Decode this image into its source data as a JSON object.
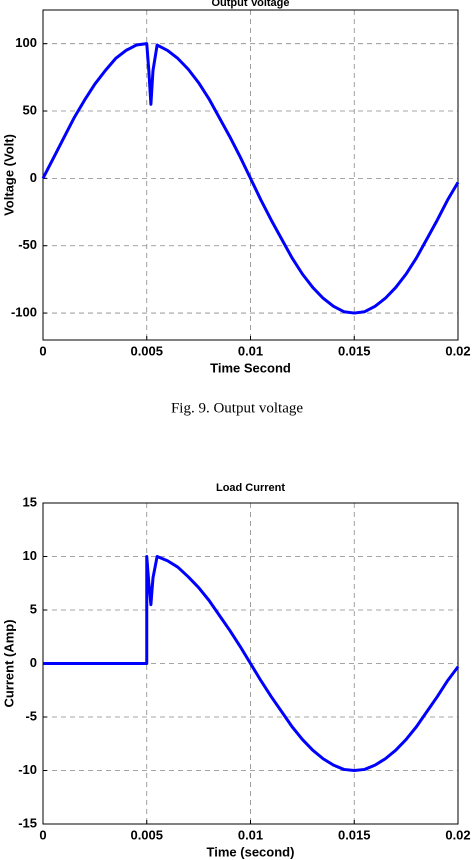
{
  "chart_data": [
    {
      "type": "line",
      "title": "Output Voltage",
      "xlabel": "Time Second",
      "ylabel": "Voltage (Volt)",
      "x": [
        0,
        0.0005,
        0.001,
        0.0015,
        0.002,
        0.0025,
        0.003,
        0.0035,
        0.004,
        0.0045,
        0.005,
        0.0051,
        0.0052,
        0.0053,
        0.0055,
        0.006,
        0.0065,
        0.007,
        0.0075,
        0.008,
        0.0085,
        0.009,
        0.0095,
        0.01,
        0.0105,
        0.011,
        0.0115,
        0.012,
        0.0125,
        0.013,
        0.0135,
        0.014,
        0.0145,
        0.015,
        0.0155,
        0.016,
        0.0165,
        0.017,
        0.0175,
        0.018,
        0.0185,
        0.019,
        0.0195,
        0.02
      ],
      "series": [
        {
          "name": "Output Voltage",
          "color": "#0000ff",
          "values": [
            0,
            15,
            30,
            45,
            58,
            70,
            80,
            89,
            95,
            99,
            100,
            80,
            55,
            80,
            99,
            95,
            89,
            81,
            71,
            59,
            45,
            31,
            16,
            0,
            -16,
            -31,
            -45,
            -59,
            -71,
            -81,
            -89,
            -95,
            -99,
            -100,
            -99,
            -95,
            -89,
            -81,
            -71,
            -59,
            -45,
            -31,
            -16,
            -3
          ]
        }
      ],
      "xlim": [
        0,
        0.02
      ],
      "xticks": [
        0,
        0.005,
        0.01,
        0.015,
        0.02
      ],
      "ylim": [
        -120,
        125
      ],
      "yticks": [
        -100,
        -50,
        0,
        50,
        100
      ],
      "grid": true
    },
    {
      "type": "line",
      "title": "Load Current",
      "xlabel": "Time (second)",
      "ylabel": "Current (Amp)",
      "x": [
        0,
        0.005,
        0.005,
        0.0051,
        0.0052,
        0.0053,
        0.0055,
        0.006,
        0.0065,
        0.007,
        0.0075,
        0.008,
        0.0085,
        0.009,
        0.0095,
        0.01,
        0.0105,
        0.011,
        0.0115,
        0.012,
        0.0125,
        0.013,
        0.0135,
        0.014,
        0.0145,
        0.015,
        0.0155,
        0.016,
        0.0165,
        0.017,
        0.0175,
        0.018,
        0.0185,
        0.019,
        0.0195,
        0.02
      ],
      "series": [
        {
          "name": "Load Current",
          "color": "#0000ff",
          "values": [
            0,
            0,
            10,
            7.5,
            5.5,
            8,
            10,
            9.6,
            9,
            8.1,
            7.1,
            5.9,
            4.5,
            3.1,
            1.6,
            0,
            -1.6,
            -3.1,
            -4.5,
            -5.9,
            -7.1,
            -8.1,
            -8.9,
            -9.5,
            -9.9,
            -10,
            -9.9,
            -9.5,
            -8.9,
            -8.1,
            -7.1,
            -5.9,
            -4.5,
            -3.1,
            -1.6,
            -0.3
          ]
        }
      ],
      "xlim": [
        0,
        0.02
      ],
      "xticks": [
        0,
        0.005,
        0.01,
        0.015,
        0.02
      ],
      "ylim": [
        -15,
        15
      ],
      "yticks": [
        -15,
        -10,
        -5,
        0,
        5,
        10,
        15
      ],
      "grid": true
    }
  ],
  "caption": "Fig. 9. Output voltage"
}
